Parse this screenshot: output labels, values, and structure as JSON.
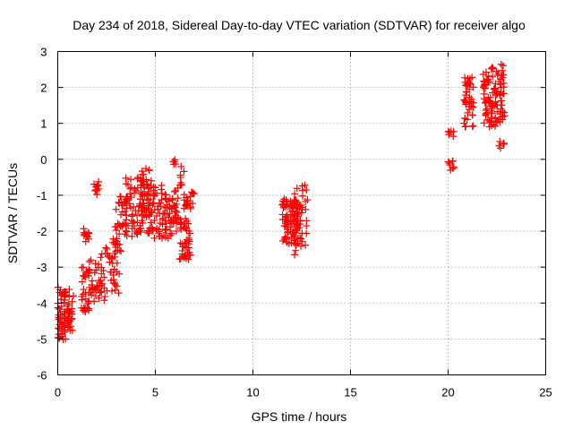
{
  "chart_data": {
    "type": "scatter",
    "title": "Day 234 of 2018, Sidereal Day-to-day VTEC variation (SDTVAR) for receiver algo",
    "xlabel": "GPS time / hours",
    "ylabel": "SDTVAR / TECUs",
    "xlim": [
      0,
      25
    ],
    "ylim": [
      -6,
      3
    ],
    "xticks": [
      0,
      5,
      10,
      15,
      20,
      25
    ],
    "yticks": [
      -6,
      -5,
      -4,
      -3,
      -2,
      -1,
      0,
      1,
      2,
      3
    ],
    "grid": true,
    "marker": "plus",
    "color": "#ff0000",
    "clusters": [
      {
        "x_range": [
          0.0,
          0.4
        ],
        "y_range": [
          -5.1,
          -3.5
        ],
        "count": 45
      },
      {
        "x_range": [
          0.3,
          0.8
        ],
        "y_range": [
          -4.8,
          -3.6
        ],
        "count": 40
      },
      {
        "x_range": [
          1.2,
          1.6
        ],
        "y_range": [
          -4.3,
          -3.0
        ],
        "count": 30
      },
      {
        "x_range": [
          1.3,
          1.6
        ],
        "y_range": [
          -2.3,
          -1.9
        ],
        "count": 12
      },
      {
        "x_range": [
          1.8,
          2.1
        ],
        "y_range": [
          -1.0,
          -0.6
        ],
        "count": 10
      },
      {
        "x_range": [
          1.6,
          2.6
        ],
        "y_range": [
          -4.0,
          -2.8
        ],
        "count": 40
      },
      {
        "x_range": [
          2.2,
          3.2
        ],
        "y_range": [
          -3.9,
          -2.2
        ],
        "count": 45
      },
      {
        "x_range": [
          2.9,
          3.6
        ],
        "y_range": [
          -2.6,
          -1.0
        ],
        "count": 35
      },
      {
        "x_range": [
          3.4,
          4.4
        ],
        "y_range": [
          -2.2,
          -0.5
        ],
        "count": 60
      },
      {
        "x_range": [
          4.2,
          4.8
        ],
        "y_range": [
          -1.6,
          -0.2
        ],
        "count": 40
      },
      {
        "x_range": [
          4.5,
          5.6
        ],
        "y_range": [
          -2.2,
          -0.7
        ],
        "count": 70
      },
      {
        "x_range": [
          5.5,
          6.2
        ],
        "y_range": [
          -2.2,
          -0.7
        ],
        "count": 50
      },
      {
        "x_range": [
          5.9,
          6.1
        ],
        "y_range": [
          -0.15,
          0.0
        ],
        "count": 5
      },
      {
        "x_range": [
          6.2,
          6.8
        ],
        "y_range": [
          -2.8,
          -1.6
        ],
        "count": 45
      },
      {
        "x_range": [
          6.2,
          6.5
        ],
        "y_range": [
          -0.8,
          -0.2
        ],
        "count": 8
      },
      {
        "x_range": [
          6.4,
          7.0
        ],
        "y_range": [
          -1.4,
          -0.9
        ],
        "count": 20
      },
      {
        "x_range": [
          11.5,
          12.3
        ],
        "y_range": [
          -2.4,
          -1.1
        ],
        "count": 90
      },
      {
        "x_range": [
          12.1,
          12.8
        ],
        "y_range": [
          -2.8,
          -0.7
        ],
        "count": 45
      },
      {
        "x_range": [
          20.0,
          20.3
        ],
        "y_range": [
          -0.3,
          0.0
        ],
        "count": 8
      },
      {
        "x_range": [
          20.0,
          20.3
        ],
        "y_range": [
          0.6,
          0.8
        ],
        "count": 6
      },
      {
        "x_range": [
          20.8,
          21.3
        ],
        "y_range": [
          0.9,
          2.3
        ],
        "count": 45
      },
      {
        "x_range": [
          21.8,
          22.5
        ],
        "y_range": [
          0.9,
          2.6
        ],
        "count": 70
      },
      {
        "x_range": [
          22.5,
          22.9
        ],
        "y_range": [
          1.0,
          2.7
        ],
        "count": 40
      },
      {
        "x_range": [
          22.6,
          22.9
        ],
        "y_range": [
          0.3,
          0.5
        ],
        "count": 6
      }
    ]
  }
}
